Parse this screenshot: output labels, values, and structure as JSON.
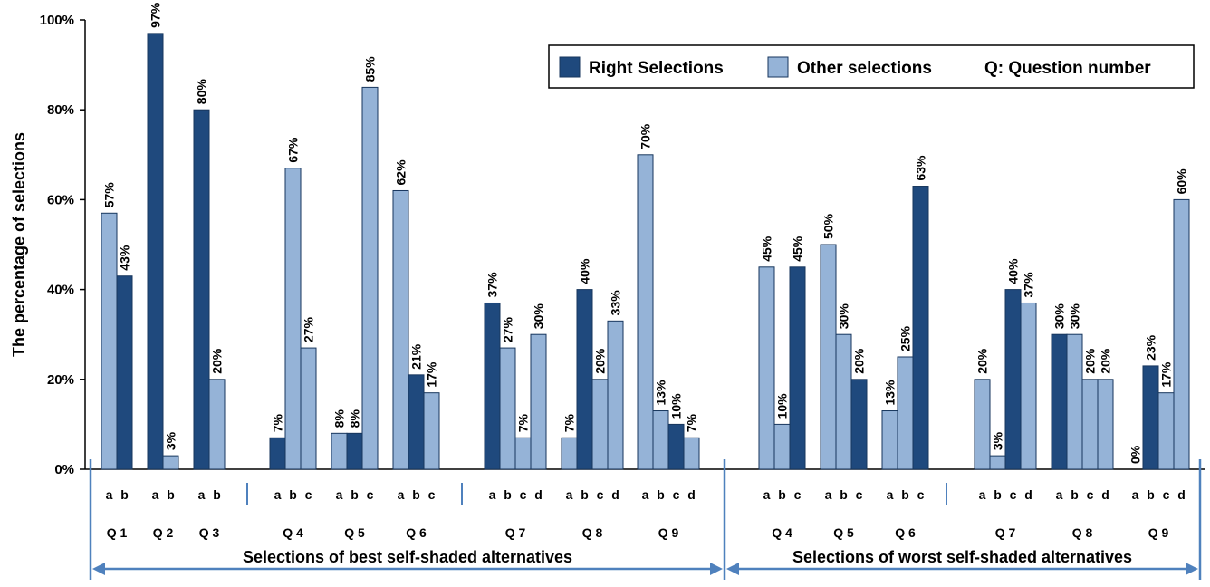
{
  "chart_data": {
    "type": "bar",
    "ylabel": "The percentage of selections",
    "ylim": [
      0,
      100
    ],
    "y_ticks": [
      "0%",
      "20%",
      "40%",
      "60%",
      "80%",
      "100%"
    ],
    "grid": false,
    "legend_position": "top-right",
    "legend": {
      "right": "Right Selections",
      "other": "Other selections",
      "note": "Q: Question number"
    },
    "colors": {
      "right": "#1f497d",
      "other": "#95b3d7",
      "divider": "#4f81bd",
      "bar_stroke": "#17365d"
    },
    "sections": [
      {
        "label": "Selections of best self-shaded alternatives"
      },
      {
        "label": "Selections of worst self-shaded alternatives"
      }
    ],
    "groups": [
      {
        "section": 0,
        "question": "Q 1",
        "options": [
          "a",
          "b"
        ],
        "values": [
          57,
          43
        ],
        "labels": [
          "57%",
          "43%"
        ],
        "right": [
          false,
          true
        ]
      },
      {
        "section": 0,
        "question": "Q 2",
        "options": [
          "a",
          "b"
        ],
        "values": [
          97,
          3
        ],
        "labels": [
          "97%",
          "3%"
        ],
        "right": [
          true,
          false
        ]
      },
      {
        "section": 0,
        "question": "Q 3",
        "options": [
          "a",
          "b"
        ],
        "values": [
          80,
          20
        ],
        "labels": [
          "80%",
          "20%"
        ],
        "right": [
          true,
          false
        ]
      },
      {
        "section": 0,
        "question": "Q 4",
        "options": [
          "a",
          "b",
          "c"
        ],
        "values": [
          7,
          67,
          27
        ],
        "labels": [
          "7%",
          "67%",
          "27%"
        ],
        "right": [
          true,
          false,
          false
        ]
      },
      {
        "section": 0,
        "question": "Q 5",
        "options": [
          "a",
          "b",
          "c"
        ],
        "values": [
          8,
          8,
          85
        ],
        "labels": [
          "8%",
          "8%",
          "85%"
        ],
        "right": [
          false,
          true,
          false
        ]
      },
      {
        "section": 0,
        "question": "Q 6",
        "options": [
          "a",
          "b",
          "c"
        ],
        "values": [
          62,
          21,
          17
        ],
        "labels": [
          "62%",
          "21%",
          "17%"
        ],
        "right": [
          false,
          true,
          false
        ]
      },
      {
        "section": 0,
        "question": "Q 7",
        "options": [
          "a",
          "b",
          "c",
          "d"
        ],
        "values": [
          37,
          27,
          7,
          30
        ],
        "labels": [
          "37%",
          "27%",
          "7%",
          "30%"
        ],
        "right": [
          true,
          false,
          false,
          false
        ]
      },
      {
        "section": 0,
        "question": "Q 8",
        "options": [
          "a",
          "b",
          "c",
          "d"
        ],
        "values": [
          7,
          40,
          20,
          33
        ],
        "labels": [
          "7%",
          "40%",
          "20%",
          "33%"
        ],
        "right": [
          false,
          true,
          false,
          false
        ]
      },
      {
        "section": 0,
        "question": "Q 9",
        "options": [
          "a",
          "b",
          "c",
          "d"
        ],
        "values": [
          70,
          13,
          10,
          7
        ],
        "labels": [
          "70%",
          "13%",
          "10%",
          "7%"
        ],
        "right": [
          false,
          false,
          true,
          false
        ]
      },
      {
        "section": 1,
        "question": "Q 4",
        "options": [
          "a",
          "b",
          "c"
        ],
        "values": [
          45,
          10,
          45
        ],
        "labels": [
          "45%",
          "10%",
          "45%"
        ],
        "right": [
          false,
          false,
          true
        ]
      },
      {
        "section": 1,
        "question": "Q 5",
        "options": [
          "a",
          "b",
          "c"
        ],
        "values": [
          50,
          30,
          20
        ],
        "labels": [
          "50%",
          "30%",
          "20%"
        ],
        "right": [
          false,
          false,
          true
        ]
      },
      {
        "section": 1,
        "question": "Q 6",
        "options": [
          "a",
          "b",
          "c"
        ],
        "values": [
          13,
          25,
          63
        ],
        "labels": [
          "13%",
          "25%",
          "63%"
        ],
        "right": [
          false,
          false,
          true
        ]
      },
      {
        "section": 1,
        "question": "Q 7",
        "options": [
          "a",
          "b",
          "c",
          "d"
        ],
        "values": [
          20,
          3,
          40,
          37
        ],
        "labels": [
          "20%",
          "3%",
          "40%",
          "37%"
        ],
        "right": [
          false,
          false,
          true,
          false
        ]
      },
      {
        "section": 1,
        "question": "Q 8",
        "options": [
          "a",
          "b",
          "c",
          "d"
        ],
        "values": [
          30,
          30,
          20,
          20
        ],
        "labels": [
          "30%",
          "30%",
          "20%",
          "20%"
        ],
        "right": [
          true,
          false,
          false,
          false
        ]
      },
      {
        "section": 1,
        "question": "Q 9",
        "options": [
          "a",
          "b",
          "c",
          "d"
        ],
        "values": [
          0,
          23,
          17,
          60
        ],
        "labels": [
          "0%",
          "23%",
          "17%",
          "60%"
        ],
        "right": [
          false,
          true,
          false,
          false
        ]
      }
    ]
  }
}
